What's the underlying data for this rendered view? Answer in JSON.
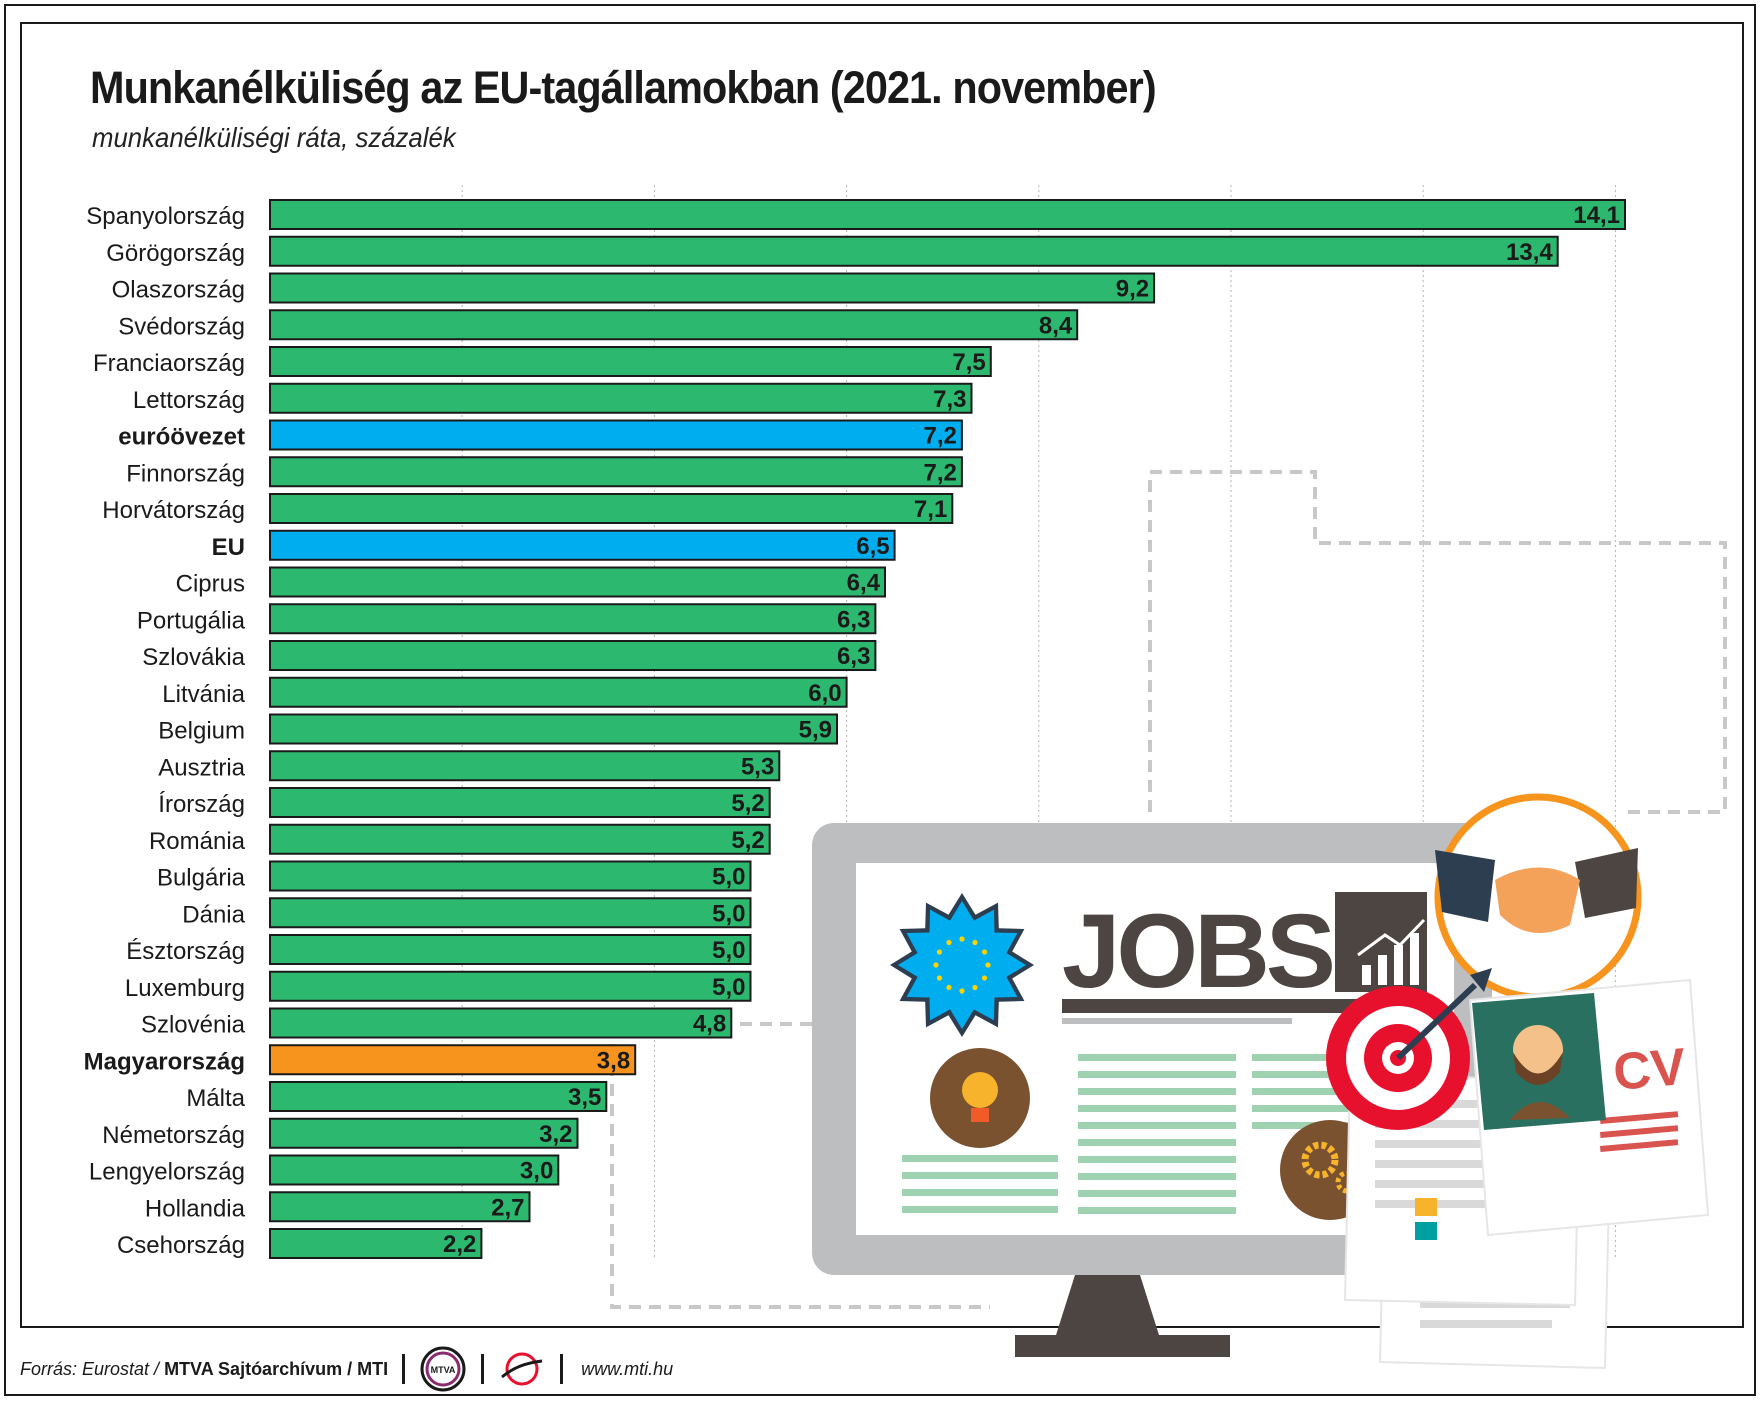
{
  "title": "Munkanélküliség az EU-tagállamokban (2021. november)",
  "subtitle": "munkanélküliségi ráta, százalék",
  "colors": {
    "default_bar": "#2db870",
    "eurozone_eu_bar": "#00aeef",
    "hungary_bar": "#f7941d",
    "grid": "#b3b3b3"
  },
  "chart_data": {
    "type": "bar",
    "orientation": "horizontal",
    "title": "Munkanélküliség az EU-tagállamokban (2021. november)",
    "subtitle": "munkanélküliségi ráta, százalék",
    "xlim": [
      0,
      15
    ],
    "grid": true,
    "categories": [
      "Spanyolország",
      "Görögország",
      "Olaszország",
      "Svédország",
      "Franciaország",
      "Lettország",
      "euróövezet",
      "Finnország",
      "Horvátország",
      "EU",
      "Ciprus",
      "Portugália",
      "Szlovákia",
      "Litvánia",
      "Belgium",
      "Ausztria",
      "Írország",
      "Románia",
      "Bulgária",
      "Dánia",
      "Észtország",
      "Luxemburg",
      "Szlovénia",
      "Magyarország",
      "Málta",
      "Németország",
      "Lengyelország",
      "Hollandia",
      "Csehország"
    ],
    "values": [
      14.1,
      13.4,
      9.2,
      8.4,
      7.5,
      7.3,
      7.2,
      7.2,
      7.1,
      6.5,
      6.4,
      6.3,
      6.3,
      6.0,
      5.9,
      5.3,
      5.2,
      5.2,
      5.0,
      5.0,
      5.0,
      5.0,
      4.8,
      3.8,
      3.5,
      3.2,
      3.0,
      2.7,
      2.2
    ],
    "value_labels": [
      "14,1",
      "13,4",
      "9,2",
      "8,4",
      "7,5",
      "7,3",
      "7,2",
      "7,2",
      "7,1",
      "6,5",
      "6,4",
      "6,3",
      "6,3",
      "6,0",
      "5,9",
      "5,3",
      "5,2",
      "5,2",
      "5,0",
      "5,0",
      "5,0",
      "5,0",
      "4,8",
      "3,8",
      "3,5",
      "3,2",
      "3,0",
      "2,7",
      "2,2"
    ],
    "highlight": {
      "euróövezet": "aggregate",
      "EU": "aggregate",
      "Magyarország": "hungary"
    },
    "bold_labels": [
      "euróövezet",
      "EU",
      "Magyarország"
    ]
  },
  "illustration": {
    "word": "JOBS",
    "cv": "CV",
    "icons": [
      "eu-star-badge-icon",
      "lightbulb-icon",
      "gears-icon",
      "growth-chart-icon",
      "handshake-icon",
      "target-icon",
      "cv-document-icon",
      "person-avatar-icon",
      "monitor-icon"
    ]
  },
  "footer": {
    "source": "Forrás: Eurostat /",
    "archive": "MTVA Sajtóarchívum / MTI",
    "logo1_text": "MTVA",
    "url": "www.mti.hu"
  }
}
